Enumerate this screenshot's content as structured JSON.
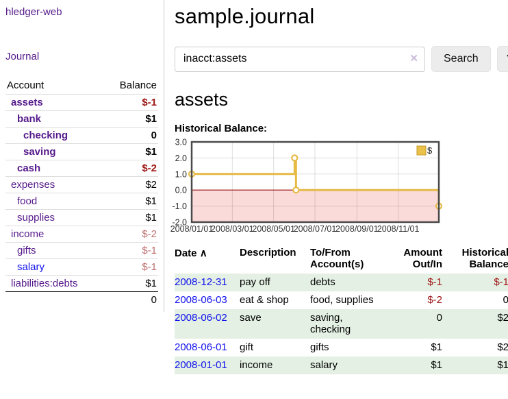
{
  "app": {
    "brand": "hledger-web",
    "nav_journal": "Journal"
  },
  "sidebar": {
    "accounts_header": {
      "account": "Account",
      "balance": "Balance"
    },
    "accounts": [
      {
        "name": "assets",
        "balance": "$-1",
        "level": 1,
        "bold": true,
        "name_style": "purple",
        "balance_style": "neg-strong"
      },
      {
        "name": "bank",
        "balance": "$1",
        "level": 2,
        "bold": true,
        "name_style": "purple",
        "balance_style": "normal"
      },
      {
        "name": "checking",
        "balance": "0",
        "level": 3,
        "bold": true,
        "name_style": "purple",
        "balance_style": "normal"
      },
      {
        "name": "saving",
        "balance": "$1",
        "level": 3,
        "bold": true,
        "name_style": "purple",
        "balance_style": "normal"
      },
      {
        "name": "cash",
        "balance": "$-2",
        "level": 2,
        "bold": true,
        "name_style": "purple",
        "balance_style": "neg-strong"
      },
      {
        "name": "expenses",
        "balance": "$2",
        "level": 1,
        "bold": false,
        "name_style": "purple",
        "balance_style": "normal"
      },
      {
        "name": "food",
        "balance": "$1",
        "level": 2,
        "bold": false,
        "name_style": "purple",
        "balance_style": "normal"
      },
      {
        "name": "supplies",
        "balance": "$1",
        "level": 2,
        "bold": false,
        "name_style": "purple",
        "balance_style": "normal"
      },
      {
        "name": "income",
        "balance": "$-2",
        "level": 1,
        "bold": false,
        "name_style": "purple",
        "balance_style": "neg-dim"
      },
      {
        "name": "gifts",
        "balance": "$-1",
        "level": 2,
        "bold": false,
        "name_style": "purple",
        "balance_style": "neg-dim"
      },
      {
        "name": "salary",
        "balance": "$-1",
        "level": 2,
        "bold": false,
        "name_style": "blue",
        "balance_style": "neg-dim"
      },
      {
        "name": "liabilities:debts",
        "balance": "$1",
        "level": 1,
        "bold": false,
        "name_style": "purple",
        "balance_style": "normal"
      }
    ],
    "total": "0"
  },
  "header": {
    "title": "sample.journal"
  },
  "search": {
    "query": "inacct:assets",
    "clear_icon": "✕",
    "button": "Search",
    "help_button": "?"
  },
  "account_page": {
    "heading": "assets",
    "chart_label": "Historical Balance:"
  },
  "chart_data": {
    "type": "line",
    "title": "Historical Balance:",
    "legend": {
      "label": "$",
      "position": "top-right"
    },
    "series": [
      {
        "name": "$",
        "step": true,
        "color": "#e6ba45",
        "x": [
          "2008-01-01",
          "2008-06-01",
          "2008-06-03",
          "2008-12-31"
        ],
        "x_day": [
          0,
          152,
          154,
          365
        ],
        "values": [
          1,
          2,
          0,
          -1
        ]
      }
    ],
    "x_ticks": {
      "labels": [
        "2008/01/01",
        "2008/03/01",
        "2008/05/01",
        "2008/07/01",
        "2008/09/01",
        "2008/11/01"
      ],
      "days": [
        0,
        60,
        121,
        182,
        244,
        305
      ]
    },
    "y_ticks": [
      3.0,
      2.0,
      1.0,
      0.0,
      -1.0,
      -2.0
    ],
    "ylim": [
      -2,
      3
    ],
    "xlim_days": [
      0,
      365
    ],
    "grid": true,
    "negative_region": true,
    "negative_region_color": "#fbdada",
    "zero_line_color": "#990f0f",
    "border_color": "#4a4a4a"
  },
  "register": {
    "columns": [
      "Date",
      "Description",
      "To/From Account(s)",
      "Amount Out/In",
      "Historical Balance"
    ],
    "sort_icon": "∧",
    "rows": [
      {
        "date": "2008-12-31",
        "description": "pay off",
        "accounts": "debts",
        "amount": "$-1",
        "amount_neg": true,
        "balance": "$-1",
        "balance_neg": true,
        "green": true
      },
      {
        "date": "2008-06-03",
        "description": "eat & shop",
        "accounts": "food, supplies",
        "amount": "$-2",
        "amount_neg": true,
        "balance": "0",
        "balance_neg": false,
        "green": false
      },
      {
        "date": "2008-06-02",
        "description": "save",
        "accounts": "saving, checking",
        "amount": "0",
        "amount_neg": false,
        "balance": "$2",
        "balance_neg": false,
        "green": true
      },
      {
        "date": "2008-06-01",
        "description": "gift",
        "accounts": "gifts",
        "amount": "$1",
        "amount_neg": false,
        "balance": "$2",
        "balance_neg": false,
        "green": false
      },
      {
        "date": "2008-01-01",
        "description": "income",
        "accounts": "salary",
        "amount": "$1",
        "amount_neg": false,
        "balance": "$1",
        "balance_neg": false,
        "green": true
      }
    ]
  },
  "colors": {
    "link_purple": "#551a8b",
    "link_blue": "#1212ee",
    "negative_strong": "#9d1414",
    "negative_dim": "#bf6e6e",
    "row_stripe_green": "#e3f0e3",
    "chart_gold": "#e6ba45",
    "chart_negative_bg": "#fbdada",
    "chart_zero_line": "#990f0f",
    "clear_icon_lavender": "#c9bcdc",
    "button_gray": "#ececec"
  }
}
